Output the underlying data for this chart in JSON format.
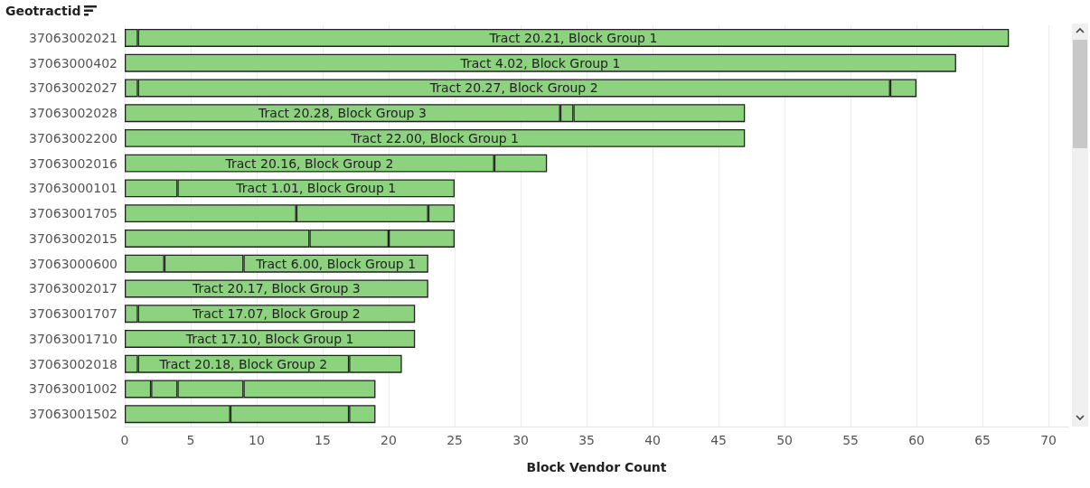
{
  "chart_data": {
    "type": "bar",
    "orientation": "horizontal",
    "stacked": true,
    "ylabel": "Geotractid",
    "xlabel": "Block Vendor Count",
    "categories": [
      "37063002021",
      "37063000402",
      "37063002027",
      "37063002028",
      "37063002200",
      "37063002016",
      "37063000101",
      "37063001705",
      "37063002015",
      "37063000600",
      "37063002017",
      "37063001707",
      "37063001710",
      "37063002018",
      "37063001002",
      "37063001502"
    ],
    "series": [
      {
        "color": "#8dd27f",
        "values": [
          1,
          63,
          1,
          33,
          47,
          28,
          4,
          13,
          14,
          3,
          23,
          1,
          22,
          1,
          2,
          8
        ],
        "value_labels": [
          null,
          "Tract 4.02, Block Group 1",
          null,
          "Tract 20.28, Block Group 3",
          "Tract 22.00, Block Group 1",
          "Tract 20.16, Block Group 2",
          null,
          null,
          null,
          null,
          "Tract 20.17, Block Group 3",
          null,
          "Tract 17.10, Block Group 1",
          null,
          null,
          null
        ]
      },
      {
        "color": "#8dd27f",
        "values": [
          66,
          null,
          57,
          1,
          null,
          4,
          21,
          10,
          6,
          6,
          null,
          21,
          null,
          16,
          2,
          9
        ],
        "value_labels": [
          "Tract 20.21, Block Group 1",
          null,
          "Tract 20.27, Block Group 2",
          null,
          null,
          null,
          "Tract 1.01, Block Group 1",
          null,
          null,
          null,
          null,
          "Tract 17.07, Block Group 2",
          null,
          "Tract 20.18, Block Group 2",
          null,
          null
        ]
      },
      {
        "color": "#8dd27f",
        "values": [
          null,
          null,
          2,
          13,
          null,
          null,
          null,
          2,
          5,
          14,
          null,
          null,
          null,
          4,
          5,
          2
        ],
        "value_labels": [
          null,
          null,
          null,
          null,
          null,
          null,
          null,
          null,
          null,
          "Tract 6.00, Block Group 1",
          null,
          null,
          null,
          null,
          null,
          null
        ]
      },
      {
        "color": "#8dd27f",
        "values": [
          null,
          null,
          null,
          null,
          null,
          null,
          null,
          null,
          null,
          null,
          null,
          null,
          null,
          null,
          10,
          null
        ]
      }
    ],
    "xlim": [
      0,
      71.5
    ],
    "xticks": [
      0,
      5,
      10,
      15,
      20,
      25,
      30,
      35,
      40,
      45,
      50,
      55,
      60,
      65,
      70
    ],
    "grid": "x"
  }
}
